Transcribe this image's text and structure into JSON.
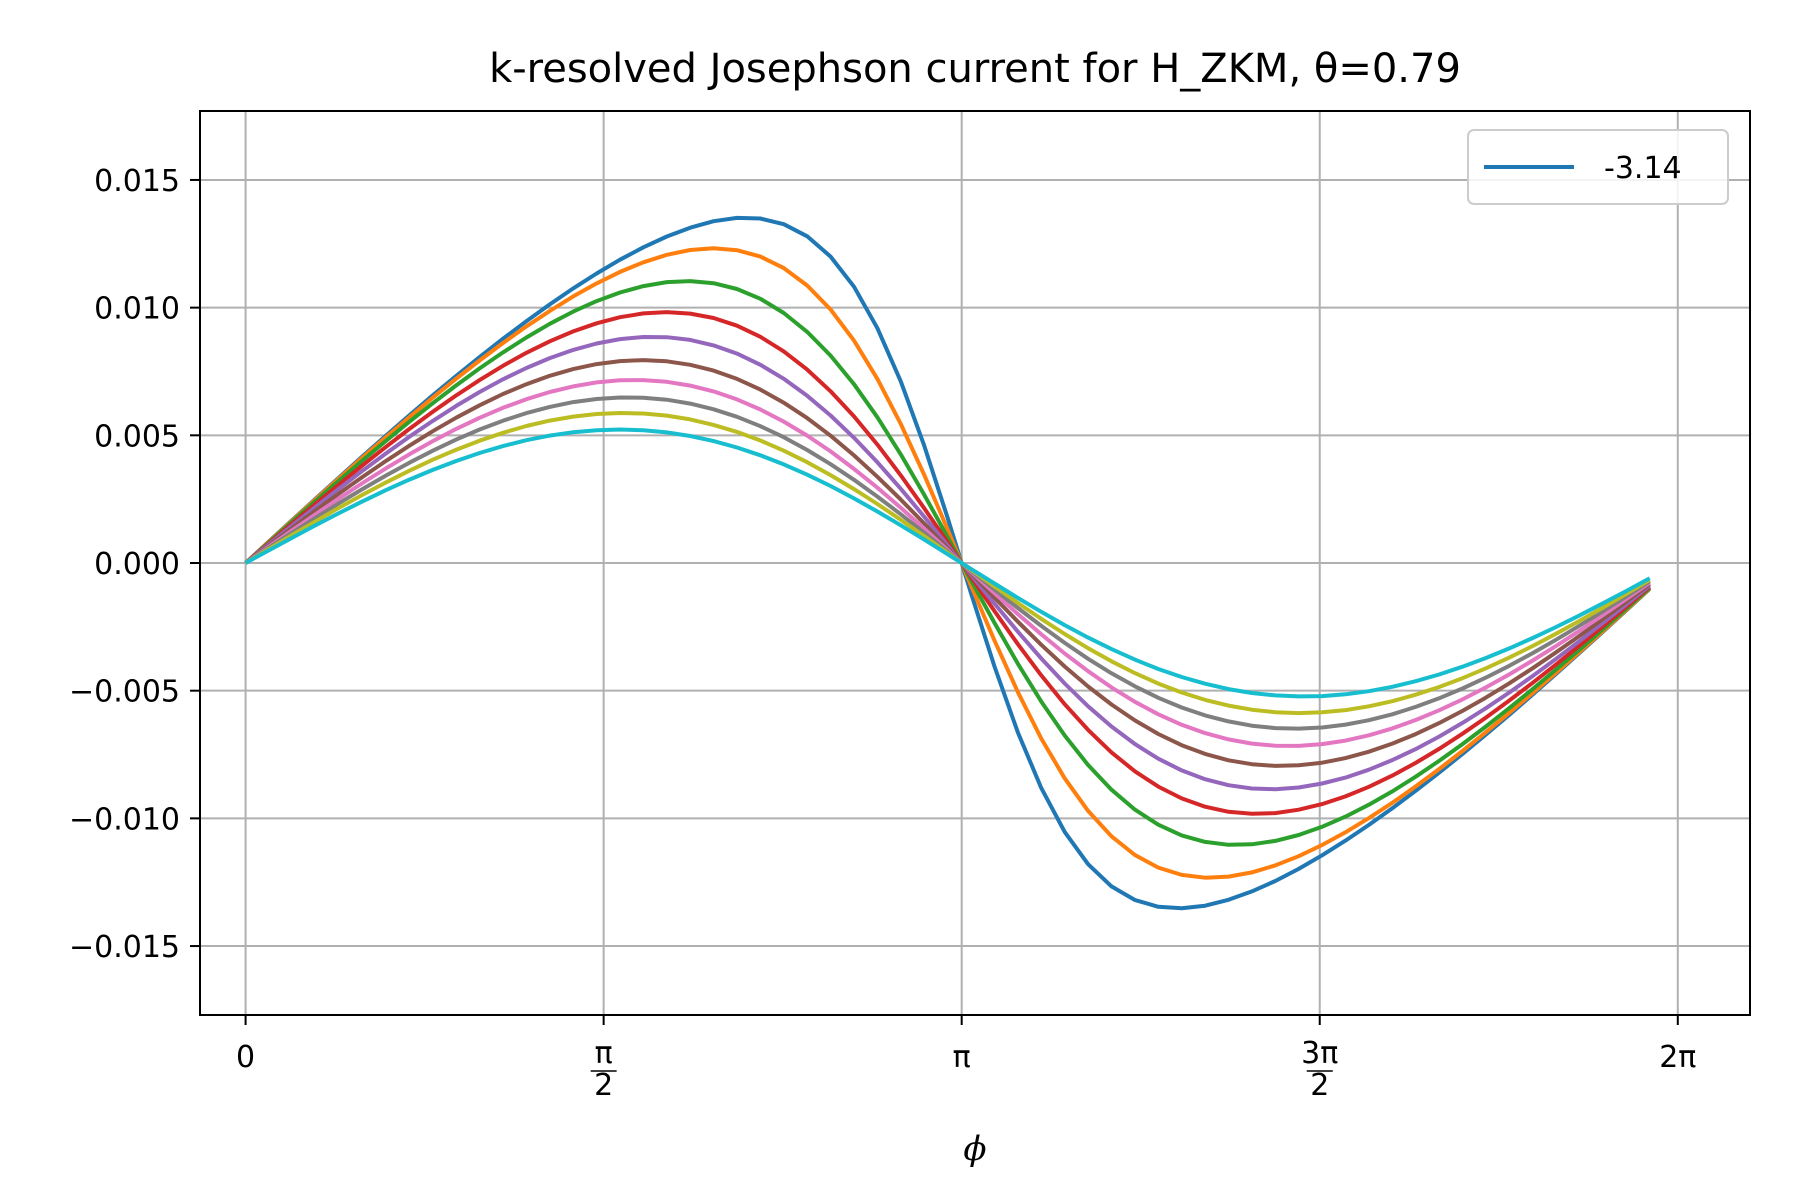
{
  "chart_data": {
    "type": "line",
    "title": "k-resolved Josephson current for H_ZKM, θ=0.79",
    "xlabel": "ϕ",
    "ylabel": "",
    "xlim": [
      -0.2,
      6.6
    ],
    "ylim": [
      -0.0177,
      0.0177
    ],
    "grid": true,
    "legend": {
      "placement": "top-right",
      "entries": [
        "-3.14"
      ]
    },
    "x_ticks": [
      {
        "value": 0,
        "label": "0"
      },
      {
        "value": 1.5708,
        "num": "π",
        "den": "2"
      },
      {
        "value": 3.1416,
        "label": "π"
      },
      {
        "value": 4.7124,
        "num": "3π",
        "den": "2"
      },
      {
        "value": 6.2832,
        "label": "2π"
      }
    ],
    "y_ticks": [
      {
        "value": 0.015,
        "label": "0.015"
      },
      {
        "value": 0.01,
        "label": "0.010"
      },
      {
        "value": 0.005,
        "label": "0.005"
      },
      {
        "value": 0.0,
        "label": "0.000"
      },
      {
        "value": -0.005,
        "label": "−0.005"
      },
      {
        "value": -0.01,
        "label": "−0.010"
      },
      {
        "value": -0.015,
        "label": "−0.015"
      }
    ],
    "x_range": [
      0.0,
      6.16
    ],
    "amplitude": 0.0165,
    "series": [
      {
        "color": "#1f77b4",
        "sharpness": 3.5
      },
      {
        "color": "#ff7f0e",
        "sharpness": 2.6
      },
      {
        "color": "#2ca02c",
        "sharpness": 2.0
      },
      {
        "color": "#d62728",
        "sharpness": 1.6
      },
      {
        "color": "#9467bd",
        "sharpness": 1.35
      },
      {
        "color": "#8c564b",
        "sharpness": 1.15
      },
      {
        "color": "#e377c2",
        "sharpness": 1.0
      },
      {
        "color": "#7f7f7f",
        "sharpness": 0.88
      },
      {
        "color": "#bcbd22",
        "sharpness": 0.78
      },
      {
        "color": "#17becf",
        "sharpness": 0.68
      }
    ]
  }
}
